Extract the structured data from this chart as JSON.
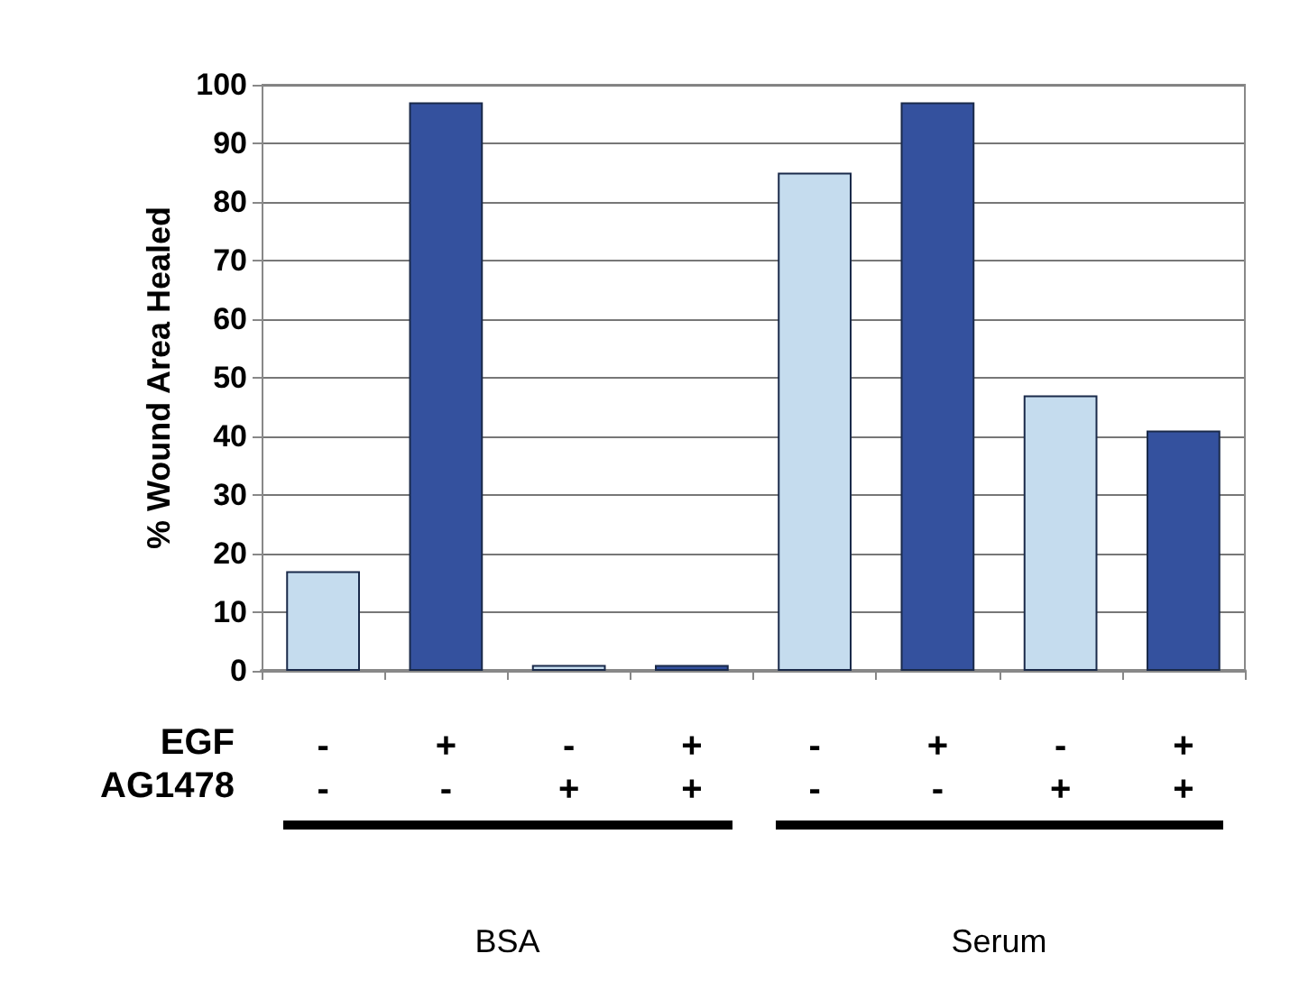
{
  "chart_data": {
    "type": "bar",
    "ylabel": "% Wound Area Healed",
    "categories": [
      "-\n-",
      "+\n-",
      "-\n+",
      "+\n+",
      "-\n-",
      "+\n-",
      "-\n+",
      "+\n+"
    ],
    "values": [
      17,
      97,
      1,
      1,
      85,
      97,
      47,
      41
    ],
    "colors": [
      "#c5dcee",
      "#34519e",
      "#c5dcee",
      "#34519e",
      "#c5dcee",
      "#34519e",
      "#c5dcee",
      "#34519e"
    ],
    "ylim": [
      0,
      100
    ],
    "yticks": [
      0,
      10,
      20,
      30,
      40,
      50,
      60,
      70,
      80,
      90,
      100
    ],
    "grid": "y",
    "annotations": [
      "EGF",
      "AG1478",
      "BSA",
      "Serum"
    ]
  }
}
